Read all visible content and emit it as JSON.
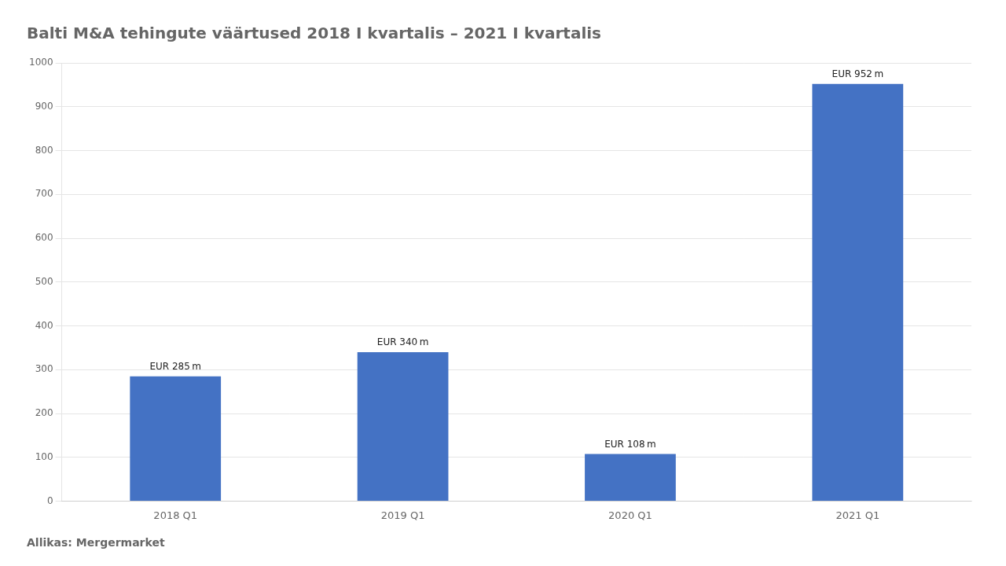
{
  "chart_data": {
    "type": "bar",
    "title": "Balti M&A tehingute väärtused 2018 I kvartalis – 2021 I kvartalis",
    "categories": [
      "2018 Q1",
      "2019 Q1",
      "2020 Q1",
      "2021 Q1"
    ],
    "values": [
      285,
      340,
      108,
      952
    ],
    "value_labels": [
      "EUR 285 m",
      "EUR 340 m",
      "EUR 108 m",
      "EUR 952 m"
    ],
    "data_labels": true,
    "color": "#4472C4",
    "ylim": [
      0,
      1000
    ],
    "yticks": [
      0,
      100,
      200,
      300,
      400,
      500,
      600,
      700,
      800,
      900,
      1000
    ],
    "grid": true,
    "annotations": [
      "Allikas: Mergermarket"
    ]
  }
}
